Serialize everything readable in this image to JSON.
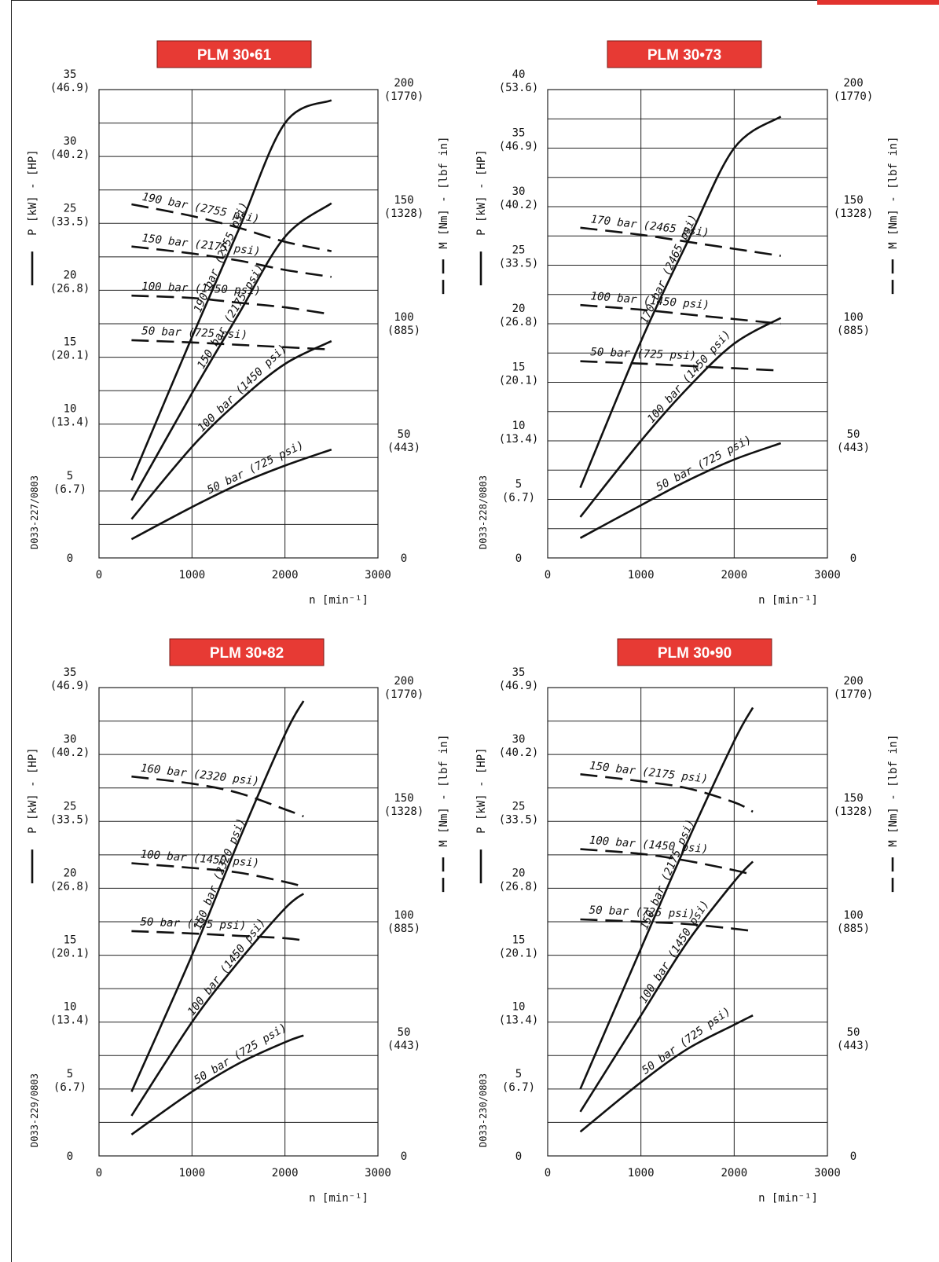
{
  "chart_data": [
    {
      "type": "line",
      "title": "PLM 30•61",
      "code": "D033-227/0803",
      "xlabel": "n [min⁻¹]",
      "ylabel_left": "P [kW] - [HP]",
      "ylabel_right": "M [Nm] - [lbf in]",
      "xlim": [
        0,
        3000
      ],
      "ylim_power": [
        0,
        35
      ],
      "ylim_torque": [
        0,
        200
      ],
      "x_ticks": [
        "0",
        "1000",
        "2000",
        "3000"
      ],
      "y_ticks_left": [
        {
          "value": 35,
          "kw": "35",
          "hp": "(46.9)"
        },
        {
          "value": 30,
          "kw": "30",
          "hp": "(40.2)"
        },
        {
          "value": 25,
          "kw": "25",
          "hp": "(33.5)"
        },
        {
          "value": 20,
          "kw": "20",
          "hp": "(26.8)"
        },
        {
          "value": 15,
          "kw": "15",
          "hp": "(20.1)"
        },
        {
          "value": 10,
          "kw": "10",
          "hp": "(13.4)"
        },
        {
          "value": 5,
          "kw": "5",
          "hp": "(6.7)"
        },
        {
          "value": 0,
          "kw": "0",
          "hp": ""
        }
      ],
      "y_ticks_right": [
        {
          "value": 200,
          "nm": "200",
          "lbf": "(1770)"
        },
        {
          "value": 150,
          "nm": "150",
          "lbf": "(1328)"
        },
        {
          "value": 100,
          "nm": "100",
          "lbf": "(885)"
        },
        {
          "value": 50,
          "nm": "50",
          "lbf": "(443)"
        },
        {
          "value": 0,
          "nm": "0",
          "lbf": ""
        }
      ],
      "power_series": [
        {
          "name": "190 bar (2755 psi)",
          "x": [
            350,
            1000,
            1500,
            2000,
            2500
          ],
          "y": [
            5.8,
            16.5,
            24.5,
            32.5,
            34.2
          ]
        },
        {
          "name": "150 bar (2175 psi)",
          "x": [
            350,
            1000,
            1500,
            2000,
            2500
          ],
          "y": [
            4.3,
            12.3,
            18.2,
            24.0,
            26.5
          ]
        },
        {
          "name": "100 bar (1450 psi)",
          "x": [
            350,
            1000,
            1500,
            2000,
            2500
          ],
          "y": [
            2.9,
            8.3,
            11.7,
            14.5,
            16.2
          ]
        },
        {
          "name": "50 bar (725 psi)",
          "x": [
            350,
            1000,
            1500,
            2000,
            2500
          ],
          "y": [
            1.4,
            3.8,
            5.5,
            6.9,
            8.1
          ]
        }
      ],
      "torque_series": [
        {
          "name": "190 bar (2755 psi)",
          "x": [
            350,
            1000,
            1500,
            2000,
            2500
          ],
          "y": [
            151,
            146,
            141,
            135,
            131
          ]
        },
        {
          "name": "150 bar (2175 psi)",
          "x": [
            350,
            1000,
            1500,
            2000,
            2500
          ],
          "y": [
            133,
            130,
            127,
            123,
            120
          ]
        },
        {
          "name": "100 bar (1450 psi)",
          "x": [
            350,
            1000,
            1500,
            2000,
            2500
          ],
          "y": [
            112,
            111,
            109,
            107,
            104
          ]
        },
        {
          "name": "50 bar (725 psi)",
          "x": [
            350,
            1000,
            1500,
            2000,
            2500
          ],
          "y": [
            93,
            92,
            91,
            90,
            89
          ]
        }
      ]
    },
    {
      "type": "line",
      "title": "PLM 30•73",
      "code": "D033-228/0803",
      "xlabel": "n [min⁻¹]",
      "ylabel_left": "P [kW] - [HP]",
      "ylabel_right": "M [Nm] - [lbf in]",
      "xlim": [
        0,
        3000
      ],
      "ylim_power": [
        0,
        40
      ],
      "ylim_torque": [
        0,
        200
      ],
      "x_ticks": [
        "0",
        "1000",
        "2000",
        "3000"
      ],
      "y_ticks_left": [
        {
          "value": 40,
          "kw": "40",
          "hp": "(53.6)"
        },
        {
          "value": 35,
          "kw": "35",
          "hp": "(46.9)"
        },
        {
          "value": 30,
          "kw": "30",
          "hp": "(40.2)"
        },
        {
          "value": 25,
          "kw": "25",
          "hp": "(33.5)"
        },
        {
          "value": 20,
          "kw": "20",
          "hp": "(26.8)"
        },
        {
          "value": 15,
          "kw": "15",
          "hp": "(20.1)"
        },
        {
          "value": 10,
          "kw": "10",
          "hp": "(13.4)"
        },
        {
          "value": 5,
          "kw": "5",
          "hp": "(6.7)"
        },
        {
          "value": 0,
          "kw": "0",
          "hp": ""
        }
      ],
      "y_ticks_right": [
        {
          "value": 200,
          "nm": "200",
          "lbf": "(1770)"
        },
        {
          "value": 150,
          "nm": "150",
          "lbf": "(1328)"
        },
        {
          "value": 100,
          "nm": "100",
          "lbf": "(885)"
        },
        {
          "value": 50,
          "nm": "50",
          "lbf": "(443)"
        },
        {
          "value": 0,
          "nm": "0",
          "lbf": ""
        }
      ],
      "power_series": [
        {
          "name": "170 bar (2465 psi)",
          "x": [
            350,
            1000,
            1500,
            2000,
            2500
          ],
          "y": [
            6.0,
            18.5,
            27.0,
            35.0,
            37.7
          ]
        },
        {
          "name": "100 bar (1450 psi)",
          "x": [
            350,
            1000,
            1500,
            2000,
            2500
          ],
          "y": [
            3.5,
            10.0,
            14.5,
            18.3,
            20.5
          ]
        },
        {
          "name": "50 bar (725 psi)",
          "x": [
            350,
            1000,
            1500,
            2000,
            2500
          ],
          "y": [
            1.7,
            4.5,
            6.6,
            8.4,
            9.8
          ]
        }
      ],
      "torque_series": [
        {
          "name": "170 bar (2465 psi)",
          "x": [
            350,
            1000,
            1500,
            2000,
            2500
          ],
          "y": [
            141,
            138,
            135,
            132,
            129
          ]
        },
        {
          "name": "100 bar (1450 psi)",
          "x": [
            350,
            1000,
            1500,
            2000,
            2500
          ],
          "y": [
            108,
            106,
            104,
            102,
            100
          ]
        },
        {
          "name": "50 bar (725 psi)",
          "x": [
            350,
            1000,
            1500,
            2000,
            2500
          ],
          "y": [
            84,
            83,
            82,
            81,
            80
          ]
        }
      ]
    },
    {
      "type": "line",
      "title": "PLM 30•82",
      "code": "D033-229/0803",
      "xlabel": "n [min⁻¹]",
      "ylabel_left": "P [kW] - [HP]",
      "ylabel_right": "M [Nm] - [lbf in]",
      "xlim": [
        0,
        3000
      ],
      "ylim_power": [
        0,
        35
      ],
      "ylim_torque": [
        0,
        200
      ],
      "x_ticks": [
        "0",
        "1000",
        "2000",
        "3000"
      ],
      "y_ticks_left": [
        {
          "value": 35,
          "kw": "35",
          "hp": "(46.9)"
        },
        {
          "value": 30,
          "kw": "30",
          "hp": "(40.2)"
        },
        {
          "value": 25,
          "kw": "25",
          "hp": "(33.5)"
        },
        {
          "value": 20,
          "kw": "20",
          "hp": "(26.8)"
        },
        {
          "value": 15,
          "kw": "15",
          "hp": "(20.1)"
        },
        {
          "value": 10,
          "kw": "10",
          "hp": "(13.4)"
        },
        {
          "value": 5,
          "kw": "5",
          "hp": "(6.7)"
        },
        {
          "value": 0,
          "kw": "0",
          "hp": ""
        }
      ],
      "y_ticks_right": [
        {
          "value": 200,
          "nm": "200",
          "lbf": "(1770)"
        },
        {
          "value": 150,
          "nm": "150",
          "lbf": "(1328)"
        },
        {
          "value": 100,
          "nm": "100",
          "lbf": "(885)"
        },
        {
          "value": 50,
          "nm": "50",
          "lbf": "(443)"
        },
        {
          "value": 0,
          "nm": "0",
          "lbf": ""
        }
      ],
      "power_series": [
        {
          "name": "160 bar (2320 psi)",
          "x": [
            350,
            1000,
            1500,
            2000,
            2200
          ],
          "y": [
            4.8,
            15.0,
            23.5,
            31.5,
            34.0
          ]
        },
        {
          "name": "100 bar (1450 psi)",
          "x": [
            350,
            1000,
            1500,
            2000,
            2200
          ],
          "y": [
            3.0,
            10.0,
            14.5,
            18.5,
            19.6
          ]
        },
        {
          "name": "50 bar (725 psi)",
          "x": [
            350,
            1000,
            1500,
            2000,
            2200
          ],
          "y": [
            1.6,
            4.8,
            6.9,
            8.5,
            9.0
          ]
        }
      ],
      "torque_series": [
        {
          "name": "160 bar (2320 psi)",
          "x": [
            350,
            1000,
            1500,
            2000,
            2200
          ],
          "y": [
            162,
            159,
            155,
            148,
            145
          ]
        },
        {
          "name": "100 bar (1450 psi)",
          "x": [
            350,
            1000,
            1500,
            2000,
            2200
          ],
          "y": [
            125,
            123,
            121,
            117,
            115
          ]
        },
        {
          "name": "50 bar (725 psi)",
          "x": [
            350,
            1000,
            1500,
            2000,
            2200
          ],
          "y": [
            96,
            95,
            94,
            93,
            92
          ]
        }
      ]
    },
    {
      "type": "line",
      "title": "PLM 30•90",
      "code": "D033-230/0803",
      "xlabel": "n [min⁻¹]",
      "ylabel_left": "P [kW] - [HP]",
      "ylabel_right": "M [Nm] - [lbf in]",
      "xlim": [
        0,
        3000
      ],
      "ylim_power": [
        0,
        35
      ],
      "ylim_torque": [
        0,
        200
      ],
      "x_ticks": [
        "0",
        "1000",
        "2000",
        "3000"
      ],
      "y_ticks_left": [
        {
          "value": 35,
          "kw": "35",
          "hp": "(46.9)"
        },
        {
          "value": 30,
          "kw": "30",
          "hp": "(40.2)"
        },
        {
          "value": 25,
          "kw": "25",
          "hp": "(33.5)"
        },
        {
          "value": 20,
          "kw": "20",
          "hp": "(26.8)"
        },
        {
          "value": 15,
          "kw": "15",
          "hp": "(20.1)"
        },
        {
          "value": 10,
          "kw": "10",
          "hp": "(13.4)"
        },
        {
          "value": 5,
          "kw": "5",
          "hp": "(6.7)"
        },
        {
          "value": 0,
          "kw": "0",
          "hp": ""
        }
      ],
      "y_ticks_right": [
        {
          "value": 200,
          "nm": "200",
          "lbf": "(1770)"
        },
        {
          "value": 150,
          "nm": "150",
          "lbf": "(1328)"
        },
        {
          "value": 100,
          "nm": "100",
          "lbf": "(885)"
        },
        {
          "value": 50,
          "nm": "50",
          "lbf": "(443)"
        },
        {
          "value": 0,
          "nm": "0",
          "lbf": ""
        }
      ],
      "power_series": [
        {
          "name": "150 bar (2175 psi)",
          "x": [
            350,
            1000,
            1500,
            2000,
            2200
          ],
          "y": [
            5.0,
            15.5,
            23.5,
            31.0,
            33.5
          ]
        },
        {
          "name": "100 bar (1450 psi)",
          "x": [
            350,
            1000,
            1500,
            2000,
            2200
          ],
          "y": [
            3.3,
            10.5,
            16.0,
            20.5,
            22.0
          ]
        },
        {
          "name": "50 bar (725 psi)",
          "x": [
            350,
            1000,
            1500,
            2000,
            2200
          ],
          "y": [
            1.8,
            5.5,
            8.0,
            9.8,
            10.5
          ]
        }
      ],
      "torque_series": [
        {
          "name": "150 bar (2175 psi)",
          "x": [
            350,
            1000,
            1500,
            2000,
            2200
          ],
          "y": [
            163,
            160,
            157,
            151,
            147
          ]
        },
        {
          "name": "100 bar (1450 psi)",
          "x": [
            350,
            1000,
            1500,
            2000,
            2200
          ],
          "y": [
            131,
            129,
            126,
            122,
            120
          ]
        },
        {
          "name": "50 bar (725 psi)",
          "x": [
            350,
            1000,
            1500,
            2000,
            2200
          ],
          "y": [
            101,
            100,
            99,
            97,
            96
          ]
        }
      ]
    }
  ]
}
